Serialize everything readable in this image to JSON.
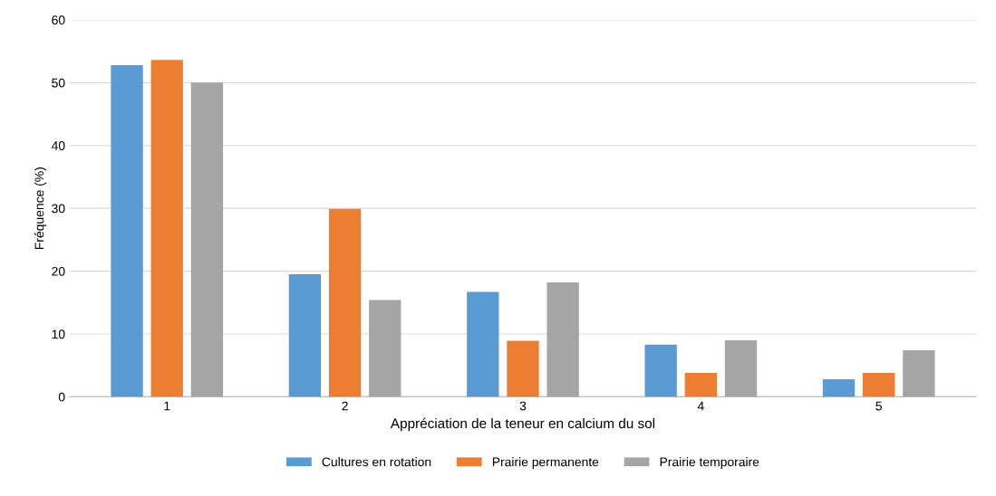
{
  "chart_data": {
    "type": "bar",
    "xlabel": "Appréciation de la teneur en calcium du sol",
    "ylabel": "Fréquence (%)",
    "categories": [
      "1",
      "2",
      "3",
      "4",
      "5"
    ],
    "series": [
      {
        "name": "Cultures en rotation",
        "color": "#5b9bd5",
        "values": [
          52.8,
          19.5,
          16.7,
          8.3,
          2.8
        ]
      },
      {
        "name": "Prairie permanente",
        "color": "#ed7d31",
        "values": [
          53.6,
          29.9,
          8.9,
          3.8,
          3.8
        ]
      },
      {
        "name": "Prairie temporaire",
        "color": "#a5a5a5",
        "values": [
          50.0,
          15.4,
          18.2,
          9.0,
          7.4
        ]
      }
    ],
    "ylim": [
      0,
      60
    ],
    "yticks": [
      0,
      10,
      20,
      30,
      40,
      50,
      60
    ],
    "grid": "y",
    "legend": "bottom"
  }
}
